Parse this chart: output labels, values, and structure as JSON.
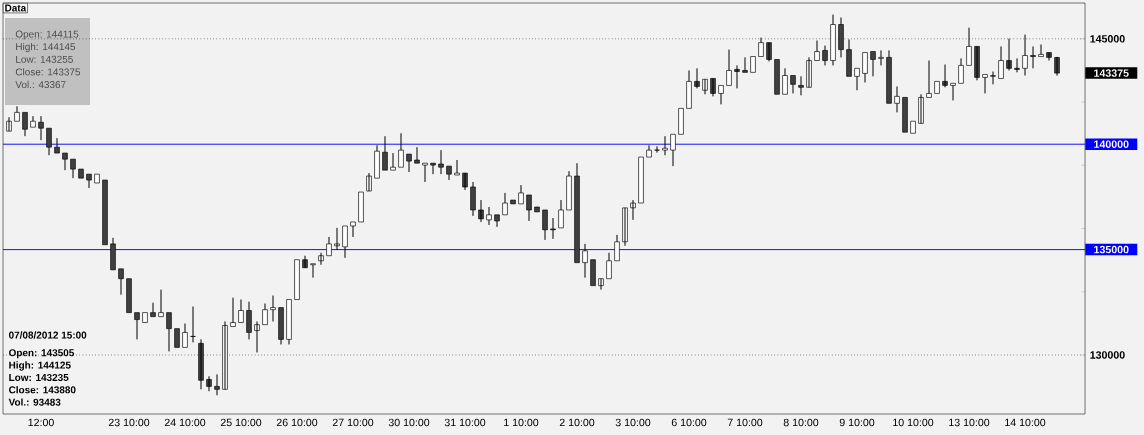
{
  "chart_data": {
    "type": "candlestick",
    "categories": [
      null,
      null,
      null,
      null,
      "12:00",
      null,
      null,
      null,
      null,
      null,
      null,
      null,
      null,
      null,
      null,
      "23 10:00",
      null,
      null,
      null,
      null,
      null,
      null,
      "24 10:00",
      null,
      null,
      null,
      null,
      null,
      null,
      "25 10:00",
      null,
      null,
      null,
      null,
      null,
      null,
      "26 10:00",
      null,
      null,
      null,
      null,
      null,
      null,
      "27 10:00",
      null,
      null,
      null,
      null,
      null,
      null,
      "30 10:00",
      null,
      null,
      null,
      null,
      null,
      null,
      "31 10:00",
      null,
      null,
      null,
      null,
      null,
      null,
      "1 10:00",
      null,
      null,
      null,
      null,
      null,
      null,
      "2 10:00",
      null,
      null,
      null,
      null,
      null,
      null,
      "3 10:00",
      null,
      null,
      null,
      null,
      null,
      null,
      "6 10:00",
      null,
      null,
      null,
      null,
      null,
      null,
      "7 10:00",
      null,
      null,
      null,
      null,
      null,
      null,
      "8 10:00",
      null,
      null,
      null,
      null,
      null,
      null,
      "9 10:00",
      null,
      null,
      null,
      null,
      null,
      null,
      "10 10:00",
      null,
      null,
      null,
      null,
      null,
      null,
      "13 10:00",
      null,
      null,
      null,
      null,
      null,
      null,
      "14 10:00",
      null,
      null,
      null,
      null
    ],
    "ohlc": [
      [
        140620,
        141280,
        140620,
        141090
      ],
      [
        141090,
        141800,
        141090,
        141510
      ],
      [
        141510,
        141510,
        140380,
        140710
      ],
      [
        140810,
        141330,
        140810,
        141090
      ],
      [
        141040,
        141330,
        140190,
        140760
      ],
      [
        140760,
        140760,
        139480,
        139860
      ],
      [
        139860,
        140290,
        139580,
        139580
      ],
      [
        139580,
        139580,
        138770,
        139290
      ],
      [
        139290,
        139290,
        138390,
        138820
      ],
      [
        138820,
        138820,
        138390,
        138390
      ],
      [
        138580,
        138580,
        137920,
        138300
      ],
      [
        138160,
        138580,
        138160,
        138580
      ],
      [
        138300,
        138300,
        135230,
        135230
      ],
      [
        135270,
        135560,
        134040,
        134040
      ],
      [
        134090,
        134090,
        132860,
        133620
      ],
      [
        133620,
        133620,
        132010,
        132010
      ],
      [
        132010,
        132010,
        130740,
        131680
      ],
      [
        131540,
        132010,
        131540,
        132010
      ],
      [
        132010,
        132480,
        131820,
        131820
      ],
      [
        131820,
        133100,
        131820,
        132010
      ],
      [
        132010,
        132010,
        130170,
        131250
      ],
      [
        131250,
        131250,
        130360,
        130360
      ],
      [
        130360,
        131490,
        130360,
        131070
      ],
      [
        130880,
        132300,
        130600,
        130880
      ],
      [
        130550,
        130740,
        128370,
        128800
      ],
      [
        128840,
        128990,
        128280,
        128510
      ],
      [
        128510,
        129080,
        128090,
        128370
      ],
      [
        128370,
        131590,
        128370,
        131400
      ],
      [
        131350,
        132720,
        131350,
        131540
      ],
      [
        131540,
        132630,
        131540,
        132110
      ],
      [
        132110,
        132530,
        130740,
        131070
      ],
      [
        131160,
        131590,
        130120,
        131440
      ],
      [
        131440,
        132440,
        131440,
        132150
      ],
      [
        132150,
        132820,
        131590,
        132250
      ],
      [
        132250,
        132250,
        130500,
        130740
      ],
      [
        130740,
        132630,
        130500,
        132630
      ],
      [
        132630,
        134520,
        132630,
        134520
      ],
      [
        134520,
        134710,
        134140,
        134140
      ],
      [
        134280,
        134330,
        133670,
        134330
      ],
      [
        134470,
        134850,
        134280,
        134710
      ],
      [
        134710,
        135600,
        134710,
        135270
      ],
      [
        135180,
        136030,
        134990,
        135270
      ],
      [
        135130,
        136120,
        134610,
        136120
      ],
      [
        136120,
        136310,
        135600,
        136310
      ],
      [
        136310,
        137730,
        136310,
        137730
      ],
      [
        137780,
        138630,
        137780,
        138490
      ],
      [
        138390,
        139950,
        138390,
        139670
      ],
      [
        139620,
        140380,
        138770,
        138770
      ],
      [
        138770,
        139580,
        138770,
        138910
      ],
      [
        138910,
        140520,
        138910,
        139720
      ],
      [
        139530,
        139530,
        138680,
        139200
      ],
      [
        139250,
        139860,
        139100,
        139100
      ],
      [
        139010,
        139100,
        138210,
        139100
      ],
      [
        139100,
        139100,
        138580,
        139010
      ],
      [
        139060,
        139720,
        138580,
        138910
      ],
      [
        138960,
        138960,
        138300,
        138580
      ],
      [
        138540,
        139250,
        138540,
        138630
      ],
      [
        138630,
        138630,
        137830,
        137970
      ],
      [
        137970,
        138210,
        136600,
        136880
      ],
      [
        136880,
        137350,
        136310,
        136460
      ],
      [
        136410,
        137020,
        136170,
        136650
      ],
      [
        136650,
        136650,
        136080,
        136360
      ],
      [
        136650,
        137690,
        136650,
        137210
      ],
      [
        137350,
        137350,
        137170,
        137170
      ],
      [
        137170,
        138060,
        137170,
        137690
      ],
      [
        137590,
        137590,
        136360,
        136880
      ],
      [
        137020,
        137020,
        136790,
        136790
      ],
      [
        136880,
        136880,
        135460,
        135940
      ],
      [
        135980,
        136500,
        135510,
        135940
      ],
      [
        136030,
        137350,
        136030,
        136880
      ],
      [
        136880,
        138720,
        136880,
        138490
      ],
      [
        138490,
        139100,
        134380,
        134380
      ],
      [
        134380,
        135270,
        133670,
        134940
      ],
      [
        134520,
        134520,
        133290,
        133290
      ],
      [
        133290,
        133620,
        133100,
        133620
      ],
      [
        133620,
        134850,
        133620,
        134470
      ],
      [
        134470,
        135700,
        134470,
        135370
      ],
      [
        135370,
        136980,
        135180,
        136980
      ],
      [
        136980,
        137350,
        136410,
        137210
      ],
      [
        137210,
        139390,
        137210,
        139390
      ],
      [
        139390,
        139950,
        139390,
        139720
      ],
      [
        139720,
        139900,
        139600,
        139720
      ],
      [
        139720,
        140380,
        139480,
        139810
      ],
      [
        139720,
        140470,
        138960,
        140470
      ],
      [
        140470,
        141700,
        140470,
        141700
      ],
      [
        141700,
        143500,
        141700,
        142980
      ],
      [
        142980,
        143600,
        142650,
        142740
      ],
      [
        142560,
        143080,
        142370,
        143080
      ],
      [
        143120,
        143120,
        142270,
        142410
      ],
      [
        142410,
        142790,
        141890,
        142790
      ],
      [
        142790,
        144490,
        142790,
        143500
      ],
      [
        143550,
        143740,
        142650,
        143450
      ],
      [
        143500,
        144120,
        143410,
        143410
      ],
      [
        143410,
        144160,
        143410,
        144160
      ],
      [
        144160,
        145060,
        144160,
        144820
      ],
      [
        144820,
        144820,
        143930,
        144020
      ],
      [
        144020,
        144020,
        142370,
        142370
      ],
      [
        142370,
        143600,
        142370,
        143260
      ],
      [
        143260,
        143260,
        142410,
        142840
      ],
      [
        142790,
        143220,
        142320,
        142700
      ],
      [
        142700,
        144120,
        142700,
        143970
      ],
      [
        143970,
        144920,
        143970,
        144400
      ],
      [
        144450,
        144680,
        143740,
        143970
      ],
      [
        143970,
        146150,
        143740,
        145680
      ],
      [
        145680,
        146010,
        144120,
        144490
      ],
      [
        144490,
        144970,
        143220,
        143220
      ],
      [
        143220,
        143600,
        142560,
        143600
      ],
      [
        143360,
        144350,
        142930,
        144350
      ],
      [
        144400,
        144400,
        143220,
        144020
      ],
      [
        144070,
        144450,
        143740,
        144120
      ],
      [
        144120,
        144450,
        141940,
        141940
      ],
      [
        141940,
        142740,
        141510,
        142270
      ],
      [
        142220,
        142220,
        140570,
        140570
      ],
      [
        140520,
        141090,
        140520,
        141090
      ],
      [
        140990,
        142370,
        140990,
        142220
      ],
      [
        142220,
        143970,
        142220,
        142410
      ],
      [
        142410,
        142980,
        142410,
        142980
      ],
      [
        142980,
        143780,
        142700,
        142790
      ],
      [
        142790,
        142890,
        142080,
        142890
      ],
      [
        142890,
        144070,
        142890,
        143740
      ],
      [
        143740,
        145530,
        143740,
        144640
      ],
      [
        144640,
        144640,
        143030,
        143170
      ],
      [
        143170,
        143310,
        142410,
        143310
      ],
      [
        143220,
        143450,
        142840,
        143260
      ],
      [
        143120,
        144640,
        143120,
        143970
      ],
      [
        143970,
        145010,
        143500,
        143600
      ],
      [
        143600,
        144070,
        143410,
        143550
      ],
      [
        143600,
        145200,
        143260,
        144210
      ],
      [
        144210,
        144640,
        143600,
        144160
      ],
      [
        144160,
        144730,
        144160,
        144260
      ],
      [
        144350,
        144350,
        143970,
        144120
      ],
      [
        144115,
        144145,
        143255,
        143375
      ]
    ],
    "ylim": [
      127200,
      146700
    ],
    "yticks": [
      130000,
      145000
    ],
    "grid": "y",
    "ref_lines": [
      {
        "axis": "y",
        "value": 140000,
        "label": "140000",
        "color": "#0000ff"
      },
      {
        "axis": "y",
        "value": 135000,
        "label": "135000",
        "color": "#0000ff"
      }
    ],
    "annotations": [
      "Data",
      "Open: 144115",
      "High: 144145",
      "Low: 143255",
      "Close: 143375",
      "Vol.: 43367",
      "07/08/2012 15:00",
      "Open: 143505",
      "High: 144125",
      "Low: 143235",
      "Close: 143880",
      "Vol.: 93483",
      "143375"
    ]
  }
}
